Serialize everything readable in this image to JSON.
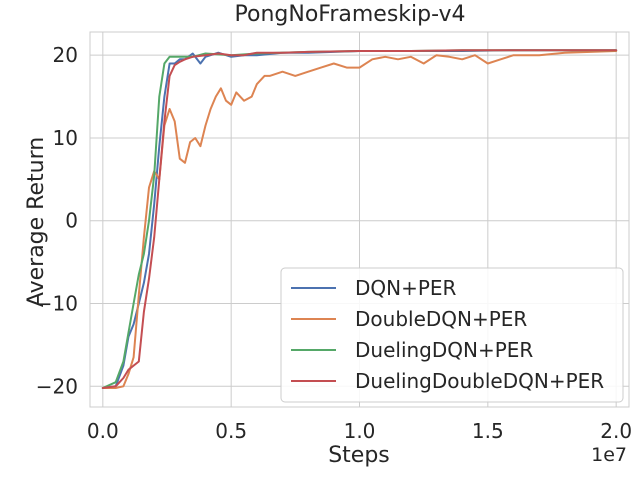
{
  "chart_data": {
    "type": "line",
    "title": "PongNoFrameskip-v4",
    "xlabel": "Steps",
    "ylabel": "Average Return",
    "x_offset_label": "1e7",
    "xlim": [
      -0.05,
      2.05
    ],
    "ylim": [
      -22.5,
      22.8
    ],
    "x_ticks": [
      0.0,
      0.5,
      1.0,
      1.5,
      2.0
    ],
    "x_tick_labels": [
      "0.0",
      "0.5",
      "1.0",
      "1.5",
      "2.0"
    ],
    "y_ticks": [
      -20,
      -10,
      0,
      10,
      20
    ],
    "y_tick_labels": [
      "−20",
      "−10",
      "0",
      "10",
      "20"
    ],
    "grid": true,
    "legend_position": "lower-right",
    "series": [
      {
        "name": "DQN+PER",
        "color": "#4c72b0",
        "x": [
          0.0,
          0.05,
          0.08,
          0.1,
          0.12,
          0.14,
          0.16,
          0.18,
          0.2,
          0.22,
          0.24,
          0.26,
          0.28,
          0.3,
          0.32,
          0.35,
          0.38,
          0.4,
          0.45,
          0.5,
          0.55,
          0.6,
          0.7,
          0.8,
          0.9,
          1.0,
          1.2,
          1.4,
          1.6,
          1.8,
          2.0
        ],
        "y": [
          -20.2,
          -20.0,
          -17.5,
          -14.0,
          -12.5,
          -10.0,
          -7.5,
          -4.0,
          2.0,
          9.0,
          15.0,
          19.0,
          19.0,
          19.5,
          19.5,
          20.2,
          19.0,
          19.8,
          20.3,
          19.8,
          20.0,
          20.0,
          20.3,
          20.3,
          20.4,
          20.5,
          20.5,
          20.5,
          20.6,
          20.6,
          20.6
        ]
      },
      {
        "name": "DoubleDQN+PER",
        "color": "#dd8452",
        "x": [
          0.0,
          0.05,
          0.08,
          0.1,
          0.12,
          0.14,
          0.16,
          0.18,
          0.2,
          0.22,
          0.24,
          0.26,
          0.28,
          0.3,
          0.32,
          0.34,
          0.36,
          0.38,
          0.4,
          0.42,
          0.44,
          0.46,
          0.48,
          0.5,
          0.52,
          0.55,
          0.58,
          0.6,
          0.63,
          0.65,
          0.7,
          0.75,
          0.8,
          0.85,
          0.9,
          0.95,
          1.0,
          1.05,
          1.1,
          1.15,
          1.2,
          1.25,
          1.3,
          1.35,
          1.4,
          1.45,
          1.5,
          1.55,
          1.6,
          1.7,
          1.8,
          1.9,
          2.0
        ],
        "y": [
          -20.2,
          -20.2,
          -20.0,
          -18.5,
          -16.5,
          -9.0,
          -2.0,
          4.0,
          6.0,
          5.0,
          11.5,
          13.5,
          12.0,
          7.5,
          7.0,
          9.5,
          10.0,
          9.0,
          11.5,
          13.5,
          15.0,
          16.0,
          14.5,
          14.0,
          15.5,
          14.5,
          15.0,
          16.5,
          17.5,
          17.5,
          18.0,
          17.5,
          18.0,
          18.5,
          19.0,
          18.5,
          18.5,
          19.5,
          19.8,
          19.5,
          19.8,
          19.0,
          20.0,
          19.8,
          19.5,
          20.0,
          19.0,
          19.5,
          20.0,
          20.0,
          20.3,
          20.4,
          20.5
        ]
      },
      {
        "name": "DuelingDQN+PER",
        "color": "#55a868",
        "x": [
          0.0,
          0.05,
          0.08,
          0.1,
          0.12,
          0.14,
          0.16,
          0.18,
          0.2,
          0.22,
          0.24,
          0.26,
          0.28,
          0.3,
          0.35,
          0.4,
          0.5,
          0.6,
          0.8,
          1.0,
          1.2,
          1.4,
          1.6,
          1.8,
          2.0
        ],
        "y": [
          -20.2,
          -19.5,
          -17.0,
          -13.5,
          -10.0,
          -6.5,
          -4.0,
          0.0,
          5.5,
          15.0,
          19.0,
          19.8,
          19.8,
          19.8,
          19.8,
          20.2,
          20.0,
          20.2,
          20.4,
          20.5,
          20.5,
          20.6,
          20.6,
          20.6,
          20.6
        ]
      },
      {
        "name": "DuelingDoubleDQN+PER",
        "color": "#c44e52",
        "x": [
          0.0,
          0.05,
          0.08,
          0.1,
          0.12,
          0.14,
          0.16,
          0.18,
          0.2,
          0.22,
          0.24,
          0.26,
          0.28,
          0.3,
          0.32,
          0.35,
          0.4,
          0.45,
          0.5,
          0.55,
          0.6,
          0.7,
          0.8,
          1.0,
          1.2,
          1.4,
          1.6,
          1.8,
          2.0
        ],
        "y": [
          -20.2,
          -20.0,
          -19.0,
          -18.0,
          -17.5,
          -17.0,
          -11.0,
          -7.0,
          -2.0,
          5.0,
          12.0,
          17.5,
          18.8,
          19.2,
          19.5,
          19.8,
          20.0,
          20.2,
          20.0,
          20.0,
          20.3,
          20.3,
          20.4,
          20.5,
          20.5,
          20.6,
          20.6,
          20.6,
          20.6
        ]
      }
    ]
  }
}
